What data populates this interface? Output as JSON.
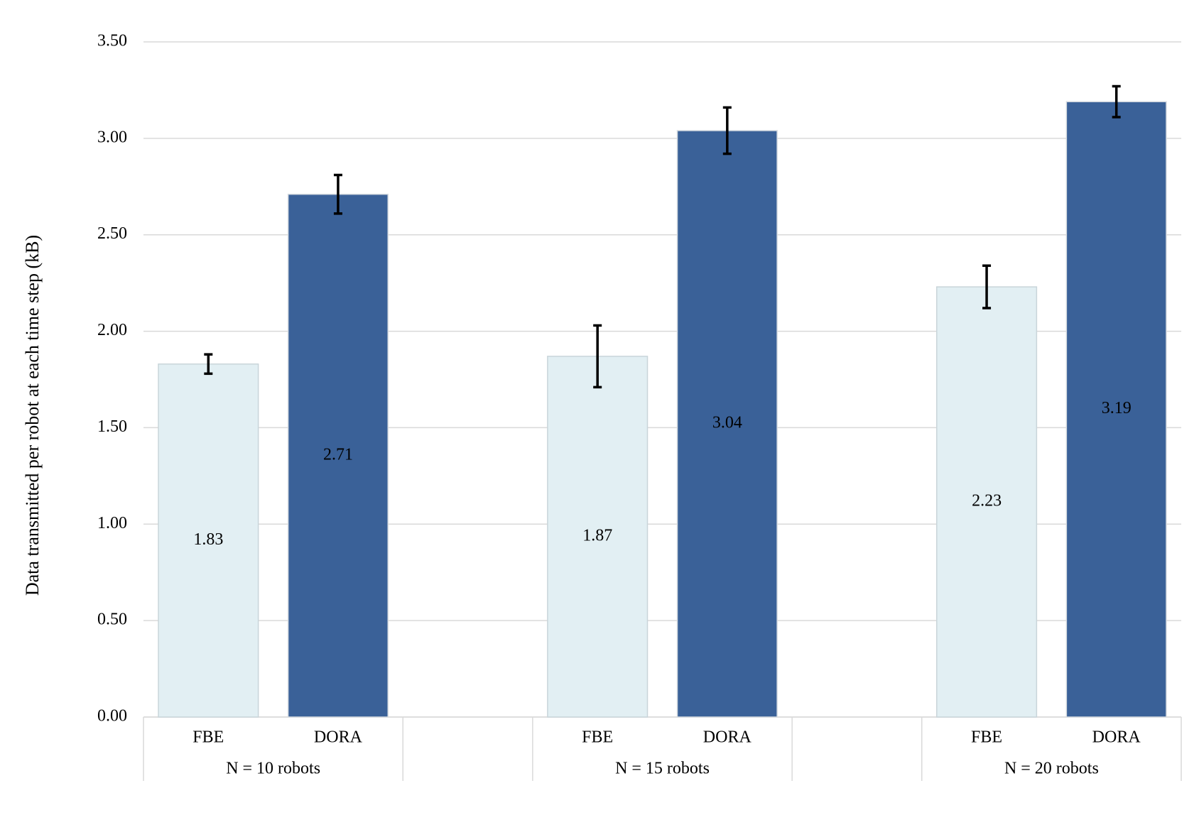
{
  "chart_data": {
    "type": "bar",
    "ylabel": "Data transmitted per robot at each time step (kB)",
    "categories": [
      "N = 10 robots",
      "N = 15 robots",
      "N = 20 robots"
    ],
    "series": [
      {
        "name": "FBE",
        "color": "#e2eff3",
        "values": [
          1.83,
          1.87,
          2.23
        ],
        "errors": [
          0.05,
          0.16,
          0.11
        ]
      },
      {
        "name": "DORA",
        "color": "#3a6198",
        "values": [
          2.71,
          3.04,
          3.19
        ],
        "errors": [
          0.1,
          0.12,
          0.08
        ]
      }
    ],
    "ylim": [
      0,
      3.5
    ],
    "yticks": [
      {
        "value": 0,
        "label": "0.00"
      },
      {
        "value": 0.5,
        "label": "0.50"
      },
      {
        "value": 1,
        "label": "1.00"
      },
      {
        "value": 1.5,
        "label": "1.50"
      },
      {
        "value": 2,
        "label": "2.00"
      },
      {
        "value": 2.5,
        "label": "2.50"
      },
      {
        "value": 3,
        "label": "3.00"
      },
      {
        "value": 3.5,
        "label": "3.50"
      }
    ],
    "grid": true
  }
}
